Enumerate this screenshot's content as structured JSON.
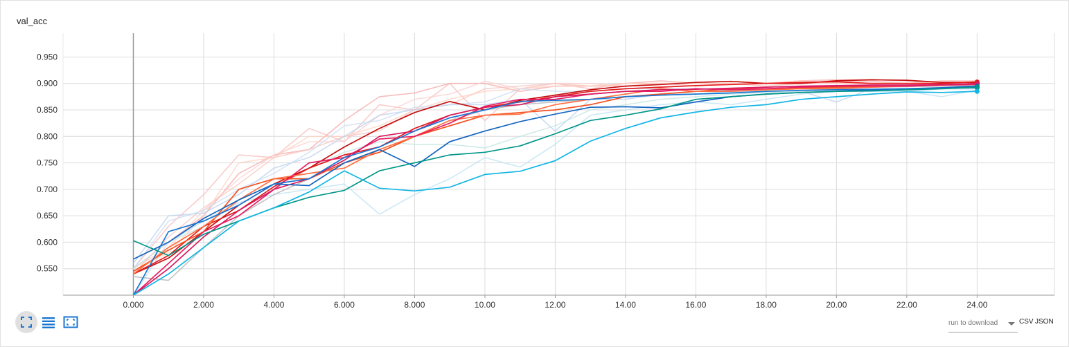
{
  "card": {
    "title": "val_acc"
  },
  "toolbar": {
    "buttons": [
      {
        "name": "expand-chart-button",
        "icon": "fullscreen-icon"
      },
      {
        "name": "toggle-log-scale-button",
        "icon": "lines-icon"
      },
      {
        "name": "fit-domain-button",
        "icon": "fit-domain-icon"
      }
    ]
  },
  "download": {
    "label": "run to download",
    "csv": "CSV",
    "json": "JSON"
  },
  "chart_data": {
    "type": "line",
    "title": "val_acc",
    "xlabel": "",
    "ylabel": "",
    "xlim": [
      -2,
      26.2
    ],
    "ylim": [
      0.5,
      0.995
    ],
    "grid": true,
    "x_ticks": [
      "0.000",
      "2.000",
      "4.000",
      "6.000",
      "8.000",
      "10.00",
      "12.00",
      "14.00",
      "16.00",
      "18.00",
      "20.00",
      "22.00",
      "24.00"
    ],
    "y_ticks": [
      "0.550",
      "0.600",
      "0.650",
      "0.700",
      "0.750",
      "0.800",
      "0.850",
      "0.900",
      "0.950"
    ],
    "x": [
      0,
      1,
      2,
      3,
      4,
      5,
      6,
      7,
      8,
      9,
      10,
      11,
      12,
      13,
      14,
      15,
      16,
      17,
      18,
      19,
      20,
      21,
      22,
      23,
      24
    ],
    "series": [
      {
        "color": "#c50f0f",
        "opacity": 1,
        "values": [
          0.54,
          0.57,
          0.62,
          0.67,
          0.71,
          0.74,
          0.78,
          0.815,
          0.845,
          0.866,
          0.85,
          0.868,
          0.878,
          0.888,
          0.895,
          0.898,
          0.902,
          0.904,
          0.9,
          0.9,
          0.905,
          0.907,
          0.906,
          0.902,
          0.902
        ]
      },
      {
        "color": "#e41a1c",
        "opacity": 1,
        "values": [
          0.54,
          0.575,
          0.63,
          0.66,
          0.705,
          0.74,
          0.765,
          0.78,
          0.815,
          0.84,
          0.855,
          0.865,
          0.875,
          0.885,
          0.89,
          0.893,
          0.896,
          0.898,
          0.9,
          0.902,
          0.903,
          0.9,
          0.9,
          0.9,
          0.903
        ]
      },
      {
        "color": "#f4511e",
        "opacity": 1,
        "values": [
          0.545,
          0.585,
          0.62,
          0.7,
          0.72,
          0.72,
          0.75,
          0.77,
          0.8,
          0.82,
          0.84,
          0.845,
          0.85,
          0.86,
          0.875,
          0.88,
          0.885,
          0.89,
          0.89,
          0.892,
          0.893,
          0.894,
          0.895,
          0.897,
          0.9
        ]
      },
      {
        "color": "#ff7043",
        "opacity": 1,
        "values": [
          0.54,
          0.59,
          0.63,
          0.68,
          0.72,
          0.73,
          0.74,
          0.775,
          0.8,
          0.83,
          0.84,
          0.842,
          0.86,
          0.87,
          0.88,
          0.89,
          0.885,
          0.885,
          0.888,
          0.89,
          0.89,
          0.893,
          0.895,
          0.898,
          0.899
        ]
      },
      {
        "color": "#e91e63",
        "opacity": 1,
        "values": [
          0.5,
          0.56,
          0.62,
          0.65,
          0.7,
          0.75,
          0.76,
          0.795,
          0.8,
          0.825,
          0.857,
          0.87,
          0.87,
          0.88,
          0.885,
          0.885,
          0.89,
          0.888,
          0.89,
          0.893,
          0.895,
          0.895,
          0.895,
          0.897,
          0.898
        ]
      },
      {
        "color": "#d81b60",
        "opacity": 1,
        "values": [
          0.5,
          0.55,
          0.61,
          0.66,
          0.7,
          0.72,
          0.755,
          0.8,
          0.81,
          0.84,
          0.855,
          0.86,
          0.875,
          0.88,
          0.885,
          0.888,
          0.889,
          0.891,
          0.893,
          0.895,
          0.896,
          0.897,
          0.897,
          0.898,
          0.9
        ]
      },
      {
        "color": "#1565c0",
        "opacity": 1,
        "values": [
          0.568,
          0.6,
          0.645,
          0.68,
          0.71,
          0.707,
          0.75,
          0.775,
          0.743,
          0.79,
          0.81,
          0.828,
          0.842,
          0.855,
          0.856,
          0.854,
          0.865,
          0.875,
          0.88,
          0.883,
          0.885,
          0.888,
          0.89,
          0.892,
          0.895
        ]
      },
      {
        "color": "#1976d2",
        "opacity": 1,
        "values": [
          0.5,
          0.62,
          0.64,
          0.67,
          0.71,
          0.72,
          0.76,
          0.78,
          0.81,
          0.835,
          0.85,
          0.866,
          0.868,
          0.87,
          0.875,
          0.878,
          0.88,
          0.882,
          0.885,
          0.887,
          0.888,
          0.889,
          0.89,
          0.891,
          0.892
        ]
      },
      {
        "color": "#009688",
        "opacity": 1,
        "values": [
          0.603,
          0.575,
          0.615,
          0.64,
          0.665,
          0.685,
          0.698,
          0.735,
          0.75,
          0.765,
          0.77,
          0.782,
          0.805,
          0.83,
          0.84,
          0.852,
          0.87,
          0.875,
          0.88,
          0.883,
          0.885,
          0.886,
          0.888,
          0.89,
          0.893
        ]
      },
      {
        "color": "#12b5e5",
        "opacity": 1,
        "values": [
          0.5,
          0.54,
          0.59,
          0.64,
          0.665,
          0.695,
          0.735,
          0.702,
          0.697,
          0.704,
          0.728,
          0.734,
          0.754,
          0.791,
          0.815,
          0.835,
          0.846,
          0.855,
          0.86,
          0.87,
          0.875,
          0.88,
          0.884,
          0.883,
          0.885
        ]
      },
      {
        "color": "#bdbdbd",
        "opacity": 0.9,
        "values": [
          0.535,
          0.528,
          0.59,
          0.65,
          0.69,
          0.72,
          0.75,
          0.77,
          0.8,
          0.83,
          0.85,
          0.86,
          0.865,
          0.87,
          0.875,
          0.88,
          0.885,
          0.887,
          0.888,
          0.89,
          0.892,
          0.893,
          0.894,
          0.895,
          0.896
        ]
      },
      {
        "color": "#f4a5a5",
        "opacity": 0.75,
        "values": [
          0.55,
          0.6,
          0.65,
          0.73,
          0.765,
          0.775,
          0.83,
          0.875,
          0.882,
          0.9,
          0.9,
          0.885,
          0.895,
          0.895,
          0.9,
          0.905,
          0.9,
          0.9,
          0.9,
          0.905,
          0.907,
          0.907,
          0.905,
          0.9,
          0.905
        ]
      },
      {
        "color": "#f8bbbb",
        "opacity": 0.75,
        "values": [
          0.55,
          0.63,
          0.69,
          0.765,
          0.76,
          0.815,
          0.79,
          0.86,
          0.85,
          0.9,
          0.83,
          0.89,
          0.9,
          0.89,
          0.9,
          0.9,
          0.895,
          0.9,
          0.9,
          0.905,
          0.905,
          0.905,
          0.9,
          0.905,
          0.905
        ]
      },
      {
        "color": "#fccfcf",
        "opacity": 0.75,
        "values": [
          0.55,
          0.59,
          0.66,
          0.72,
          0.765,
          0.79,
          0.79,
          0.84,
          0.87,
          0.88,
          0.904,
          0.89,
          0.9,
          0.9,
          0.895,
          0.9,
          0.9,
          0.9,
          0.9,
          0.905,
          0.905,
          0.903,
          0.9,
          0.902,
          0.905
        ]
      },
      {
        "color": "#f7c6bf",
        "opacity": 0.75,
        "values": [
          0.54,
          0.61,
          0.665,
          0.71,
          0.76,
          0.775,
          0.8,
          0.81,
          0.85,
          0.86,
          0.89,
          0.895,
          0.9,
          0.895,
          0.895,
          0.9,
          0.9,
          0.9,
          0.895,
          0.9,
          0.9,
          0.9,
          0.9,
          0.9,
          0.9
        ]
      },
      {
        "color": "#ffd0c0",
        "opacity": 0.75,
        "values": [
          0.545,
          0.58,
          0.65,
          0.75,
          0.76,
          0.8,
          0.8,
          0.82,
          0.85,
          0.87,
          0.885,
          0.89,
          0.895,
          0.895,
          0.9,
          0.9,
          0.9,
          0.9,
          0.9,
          0.905,
          0.9,
          0.9,
          0.9,
          0.902,
          0.905
        ]
      },
      {
        "color": "#b9d0ee",
        "opacity": 0.75,
        "values": [
          0.56,
          0.65,
          0.655,
          0.69,
          0.74,
          0.76,
          0.8,
          0.84,
          0.85,
          0.86,
          0.86,
          0.87,
          0.81,
          0.87,
          0.87,
          0.88,
          0.88,
          0.885,
          0.885,
          0.885,
          0.865,
          0.89,
          0.885,
          0.89,
          0.89
        ]
      },
      {
        "color": "#c9dcf3",
        "opacity": 0.75,
        "values": [
          0.55,
          0.64,
          0.66,
          0.7,
          0.73,
          0.77,
          0.82,
          0.83,
          0.855,
          0.86,
          0.865,
          0.89,
          0.885,
          0.885,
          0.89,
          0.89,
          0.89,
          0.89,
          0.89,
          0.89,
          0.89,
          0.89,
          0.89,
          0.89,
          0.89
        ]
      },
      {
        "color": "#bfe4f4",
        "opacity": 0.8,
        "values": [
          0.5,
          0.6,
          0.64,
          0.675,
          0.69,
          0.7,
          0.71,
          0.653,
          0.69,
          0.72,
          0.76,
          0.742,
          0.785,
          0.84,
          0.85,
          0.86,
          0.865,
          0.86,
          0.87,
          0.88,
          0.885,
          0.885,
          0.885,
          0.875,
          0.888
        ]
      },
      {
        "color": "#c5e6e2",
        "opacity": 0.8,
        "values": [
          0.55,
          0.6,
          0.63,
          0.66,
          0.7,
          0.74,
          0.77,
          0.79,
          0.785,
          0.785,
          0.778,
          0.8,
          0.82,
          0.85,
          0.86,
          0.87,
          0.875,
          0.88,
          0.883,
          0.885,
          0.886,
          0.887,
          0.888,
          0.89,
          0.89
        ]
      }
    ]
  }
}
